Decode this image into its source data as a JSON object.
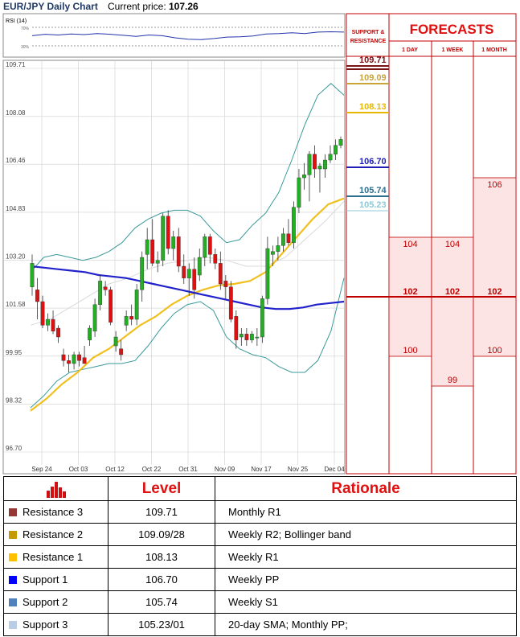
{
  "header": {
    "title": "EUR/JPY Daily Chart",
    "price_label": "Current price:",
    "price_value": "107.26"
  },
  "rsi_panel": {
    "label": "RSI (14)",
    "tick_upper": "70%",
    "tick_lower": "30%"
  },
  "side_panel": {
    "support_resistance_header": "SUPPORT & RESISTANCE",
    "forecasts_title": "FORECASTS",
    "forecast_columns": [
      "1 DAY",
      "1 WEEK",
      "1 MONTH"
    ],
    "level_labels": [
      {
        "value": "109.71",
        "color": "#7a1418"
      },
      {
        "value": "109.09",
        "color": "#c8a43a"
      },
      {
        "value": "108.13",
        "color": "#e8b800"
      },
      {
        "value": "106.70",
        "color": "#1f1fb8"
      },
      {
        "value": "105.74",
        "color": "#2e6e8e"
      },
      {
        "value": "105.23",
        "color": "#8ec8d8"
      }
    ],
    "forecasts": {
      "1 DAY": {
        "range": [
          100,
          104
        ],
        "avg": 102
      },
      "1 WEEK": {
        "range": [
          99,
          104
        ],
        "avg": 102
      },
      "1 MONTH": {
        "range": [
          100,
          106
        ],
        "avg": 102
      }
    },
    "forecast_texts": {
      "day_high": "104",
      "day_avg": "102",
      "day_low": "100",
      "week_high": "104",
      "week_avg": "102",
      "week_low": "99",
      "month_high": "106",
      "month_avg": "102",
      "month_low": "100"
    }
  },
  "chart_data": {
    "type": "candlestick",
    "title": "EUR/JPY Daily Chart",
    "ylim": [
      96.7,
      109.71
    ],
    "y_ticks": [
      "109.71",
      "108.08",
      "106.46",
      "104.83",
      "103.20",
      "101.58",
      "99.95",
      "98.32",
      "96.70"
    ],
    "x_ticks": [
      "Sep 24",
      "Oct 03",
      "Oct 12",
      "Oct 22",
      "Oct 31",
      "Nov 09",
      "Nov 17",
      "Nov 25",
      "Dec 04"
    ],
    "candles": [
      {
        "o": 102.3,
        "h": 103.4,
        "l": 102.0,
        "c": 103.1
      },
      {
        "o": 102.2,
        "h": 102.6,
        "l": 101.2,
        "c": 101.8
      },
      {
        "o": 101.8,
        "h": 102.0,
        "l": 100.9,
        "c": 101.0
      },
      {
        "o": 101.0,
        "h": 101.4,
        "l": 100.8,
        "c": 101.2
      },
      {
        "o": 101.2,
        "h": 101.5,
        "l": 100.7,
        "c": 100.8
      },
      {
        "o": 100.9,
        "h": 101.0,
        "l": 100.4,
        "c": 100.6
      },
      {
        "o": 100.0,
        "h": 100.2,
        "l": 99.6,
        "c": 99.8
      },
      {
        "o": 99.8,
        "h": 100.0,
        "l": 99.4,
        "c": 99.7
      },
      {
        "o": 99.7,
        "h": 100.1,
        "l": 99.5,
        "c": 100.0
      },
      {
        "o": 100.0,
        "h": 100.1,
        "l": 99.6,
        "c": 99.8
      },
      {
        "o": 99.9,
        "h": 100.3,
        "l": 99.7,
        "c": 99.7
      },
      {
        "o": 100.5,
        "h": 101.0,
        "l": 100.3,
        "c": 100.9
      },
      {
        "o": 100.8,
        "h": 101.9,
        "l": 100.6,
        "c": 101.7
      },
      {
        "o": 101.7,
        "h": 102.7,
        "l": 101.5,
        "c": 102.5
      },
      {
        "o": 102.3,
        "h": 102.5,
        "l": 102.0,
        "c": 102.2
      },
      {
        "o": 102.2,
        "h": 102.3,
        "l": 101.0,
        "c": 101.1
      },
      {
        "o": 100.3,
        "h": 100.8,
        "l": 100.1,
        "c": 100.6
      },
      {
        "o": 100.2,
        "h": 100.5,
        "l": 99.8,
        "c": 100.0
      },
      {
        "o": 101.0,
        "h": 101.5,
        "l": 100.8,
        "c": 101.3
      },
      {
        "o": 101.3,
        "h": 101.7,
        "l": 101.0,
        "c": 101.2
      },
      {
        "o": 101.2,
        "h": 102.4,
        "l": 101.0,
        "c": 102.2
      },
      {
        "o": 102.2,
        "h": 103.5,
        "l": 101.8,
        "c": 103.3
      },
      {
        "o": 103.4,
        "h": 104.3,
        "l": 102.9,
        "c": 103.9
      },
      {
        "o": 103.9,
        "h": 104.6,
        "l": 103.0,
        "c": 103.1
      },
      {
        "o": 103.1,
        "h": 103.5,
        "l": 102.8,
        "c": 103.2
      },
      {
        "o": 103.2,
        "h": 104.8,
        "l": 103.0,
        "c": 104.7
      },
      {
        "o": 104.7,
        "h": 104.9,
        "l": 103.4,
        "c": 103.6
      },
      {
        "o": 103.6,
        "h": 104.2,
        "l": 103.2,
        "c": 104.0
      },
      {
        "o": 104.0,
        "h": 104.3,
        "l": 102.8,
        "c": 103.0
      },
      {
        "o": 103.0,
        "h": 103.4,
        "l": 102.4,
        "c": 102.6
      },
      {
        "o": 102.6,
        "h": 103.1,
        "l": 102.0,
        "c": 102.9
      },
      {
        "o": 102.9,
        "h": 103.3,
        "l": 101.9,
        "c": 102.2
      },
      {
        "o": 102.7,
        "h": 103.6,
        "l": 102.5,
        "c": 103.3
      },
      {
        "o": 103.3,
        "h": 104.1,
        "l": 103.0,
        "c": 104.0
      },
      {
        "o": 104.0,
        "h": 104.1,
        "l": 103.1,
        "c": 103.4
      },
      {
        "o": 103.4,
        "h": 103.6,
        "l": 102.9,
        "c": 103.1
      },
      {
        "o": 103.1,
        "h": 103.5,
        "l": 102.2,
        "c": 102.4
      },
      {
        "o": 102.5,
        "h": 102.7,
        "l": 101.9,
        "c": 102.3
      },
      {
        "o": 102.3,
        "h": 102.5,
        "l": 101.1,
        "c": 101.2
      },
      {
        "o": 101.3,
        "h": 101.5,
        "l": 100.2,
        "c": 100.5
      },
      {
        "o": 100.6,
        "h": 100.9,
        "l": 100.3,
        "c": 100.7
      },
      {
        "o": 100.7,
        "h": 100.9,
        "l": 100.3,
        "c": 100.5
      },
      {
        "o": 100.5,
        "h": 100.8,
        "l": 100.4,
        "c": 100.7
      },
      {
        "o": 100.6,
        "h": 100.9,
        "l": 100.3,
        "c": 100.6
      },
      {
        "o": 100.6,
        "h": 102.0,
        "l": 100.4,
        "c": 101.9
      },
      {
        "o": 101.9,
        "h": 104.0,
        "l": 101.7,
        "c": 103.6
      },
      {
        "o": 103.4,
        "h": 103.7,
        "l": 103.0,
        "c": 103.5
      },
      {
        "o": 103.5,
        "h": 104.0,
        "l": 103.2,
        "c": 103.7
      },
      {
        "o": 103.7,
        "h": 104.3,
        "l": 103.5,
        "c": 104.1
      },
      {
        "o": 104.1,
        "h": 104.6,
        "l": 103.7,
        "c": 103.8
      },
      {
        "o": 103.8,
        "h": 105.2,
        "l": 103.6,
        "c": 105.0
      },
      {
        "o": 105.0,
        "h": 106.3,
        "l": 104.8,
        "c": 106.0
      },
      {
        "o": 106.0,
        "h": 106.5,
        "l": 105.6,
        "c": 106.1
      },
      {
        "o": 106.1,
        "h": 106.9,
        "l": 105.2,
        "c": 106.8
      },
      {
        "o": 106.8,
        "h": 107.1,
        "l": 106.0,
        "c": 106.3
      },
      {
        "o": 106.3,
        "h": 106.5,
        "l": 105.5,
        "c": 106.4
      },
      {
        "o": 106.3,
        "h": 106.8,
        "l": 106.0,
        "c": 106.6
      },
      {
        "o": 106.6,
        "h": 107.1,
        "l": 106.5,
        "c": 106.8
      },
      {
        "o": 106.8,
        "h": 107.3,
        "l": 106.6,
        "c": 107.1
      },
      {
        "o": 107.1,
        "h": 107.4,
        "l": 107.0,
        "c": 107.3
      }
    ],
    "sma_fast": [
      103.0,
      102.95,
      102.9,
      102.85,
      102.8,
      102.7,
      102.65,
      102.6,
      102.5,
      102.4,
      102.3,
      102.2,
      102.1,
      102.0,
      101.9,
      101.8,
      101.7,
      101.6,
      101.55,
      101.55,
      101.6,
      101.7,
      101.75,
      101.8
    ],
    "sma_slow": [
      98.1,
      98.5,
      99.0,
      99.4,
      99.9,
      100.2,
      100.6,
      101.0,
      101.3,
      101.7,
      102.0,
      102.2,
      102.35,
      102.4,
      102.5,
      102.8,
      103.4,
      104.0,
      104.6,
      105.1,
      105.3
    ],
    "bollinger_upper": [
      102.8,
      103.3,
      103.4,
      103.3,
      103.2,
      103.3,
      103.5,
      103.8,
      104.3,
      104.6,
      104.8,
      104.9,
      104.9,
      104.7,
      104.2,
      103.8,
      103.9,
      104.4,
      104.8,
      105.5,
      106.6,
      107.8,
      108.8,
      109.2,
      108.8
    ],
    "bollinger_lower": [
      98.2,
      98.6,
      99.1,
      99.4,
      99.5,
      99.6,
      99.7,
      99.7,
      99.8,
      100.3,
      100.9,
      101.4,
      101.7,
      101.8,
      101.5,
      100.6,
      100.2,
      100.0,
      99.9,
      99.6,
      99.4,
      99.4,
      99.8,
      100.8,
      102.6
    ],
    "bollinger_mid": [
      101.0,
      101.2,
      101.6,
      102.0,
      102.4,
      102.6,
      102.9,
      103.1,
      103.2,
      103.3,
      103.2,
      103.0,
      103.0,
      103.3,
      103.9,
      104.5,
      105.2
    ],
    "rsi": [
      58,
      62,
      60,
      63,
      61,
      64,
      62,
      59,
      56,
      60,
      58,
      52,
      48,
      47,
      50,
      54,
      55,
      57,
      63,
      64,
      66,
      64,
      68,
      69,
      68
    ]
  },
  "levels_table": {
    "header_level": "Level",
    "header_rationale": "Rationale",
    "rows": [
      {
        "name": "Resistance 3",
        "value": "109.71",
        "rationale": "Monthly R1",
        "color": "#953735"
      },
      {
        "name": "Resistance 2",
        "value": "109.09/28",
        "rationale": "Weekly R2; Bollinger band",
        "color": "#c49a00"
      },
      {
        "name": "Resistance 1",
        "value": "108.13",
        "rationale": "Weekly R1",
        "color": "#ffc000"
      },
      {
        "name": "Support 1",
        "value": "106.70",
        "rationale": "Weekly PP",
        "color": "#0000ff"
      },
      {
        "name": "Support 2",
        "value": "105.74",
        "rationale": "Weekly S1",
        "color": "#4f81bd"
      },
      {
        "name": "Support 3",
        "value": "105.23/01",
        "rationale": "20-day SMA; Monthly PP;",
        "color": "#b9cde5"
      }
    ]
  },
  "colors": {
    "bull_candle": "#22b022",
    "bear_candle": "#dd1111",
    "sma_fast": "#2222cc",
    "sma_slow": "#f0c020",
    "bollinger": "#3a9a9a",
    "forecast_red": "#c00000",
    "forecast_fill": "#fce4e4"
  }
}
